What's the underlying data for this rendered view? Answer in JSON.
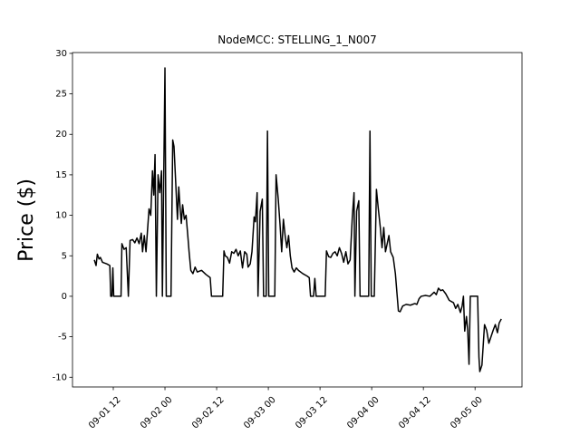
{
  "chart_data": {
    "type": "line",
    "title": "NodeMCC: STELLING_1_N007",
    "y_label": "Price ($)",
    "x": [
      7.6,
      8,
      8.3,
      8.7,
      9,
      9.5,
      10.5,
      11.2,
      11.4,
      11.7,
      11.9,
      12.1,
      13.8,
      14,
      14.5,
      15,
      15.5,
      15.9,
      16.5,
      17,
      17.5,
      18,
      18.5,
      18.8,
      19.2,
      19.6,
      20.3,
      20.7,
      21.1,
      21.4,
      21.7,
      22,
      22.4,
      22.8,
      23.2,
      23.4,
      24,
      24.3,
      25.4,
      25.8,
      26.1,
      26.5,
      26.9,
      27.2,
      27.5,
      27.8,
      28.1,
      28.5,
      28.9,
      29.3,
      29.6,
      30,
      30.5,
      31,
      31.5,
      32.5,
      33.5,
      34.5,
      34.8,
      37.4,
      37.7,
      38,
      38.5,
      39,
      39.5,
      40,
      40.5,
      41,
      41.5,
      42,
      42.5,
      43,
      43.3,
      43.8,
      44.2,
      44.7,
      45,
      45.4,
      45.6,
      46.1,
      46.6,
      46.9,
      47.5,
      47.8,
      48.1,
      49.5,
      49.8,
      50.3,
      50.7,
      51.1,
      51.5,
      51.9,
      52.3,
      52.7,
      53.1,
      53.5,
      54,
      54.5,
      55,
      56,
      57,
      57.5,
      57.8,
      58.5,
      58.8,
      59.1,
      61.2,
      61.5,
      62,
      62.5,
      63,
      63.5,
      64,
      64.5,
      65,
      65.5,
      66,
      66.5,
      67,
      67.5,
      67.9,
      68.1,
      68.5,
      69,
      69.3,
      70.8,
      71.3,
      71.6,
      71.9,
      72.6,
      73.1,
      73.5,
      74,
      74.4,
      74.8,
      75.2,
      75.6,
      76,
      76.4,
      77,
      77.5,
      78.2,
      78.6,
      79.2,
      80,
      81,
      82,
      82.5,
      83,
      83.5,
      84.5,
      85.5,
      86.5,
      87,
      87.5,
      88,
      88.5,
      89.2,
      90,
      91,
      91.5,
      92,
      92.6,
      93,
      93.3,
      93.6,
      94,
      94.3,
      94.6,
      94.9,
      96.6,
      96.9,
      97.1,
      97.6,
      98.2,
      98.7,
      99.2,
      99.7,
      100.2,
      100.7,
      101.2,
      101.6,
      102.1
    ],
    "values": [
      4.5,
      3.8,
      5.2,
      4.6,
      4.8,
      4.2,
      4.0,
      3.8,
      0,
      0,
      3.5,
      0,
      0,
      6.5,
      5.8,
      6.0,
      0,
      6.9,
      7.0,
      6.6,
      7.2,
      6.5,
      7.8,
      5.5,
      7.5,
      5.5,
      10.8,
      10.0,
      15.5,
      12.5,
      17.5,
      0,
      15,
      12.8,
      15.5,
      0,
      28.2,
      0,
      0,
      19.3,
      18.5,
      14,
      9.5,
      13.5,
      11,
      9,
      11.3,
      9.5,
      10,
      7.5,
      5.5,
      3.2,
      2.8,
      3.6,
      3.0,
      3.2,
      2.7,
      2.3,
      0,
      0,
      5.6,
      5.0,
      4.8,
      4.1,
      5.5,
      5.3,
      5.8,
      5.0,
      5.6,
      3.5,
      5.5,
      5.2,
      3.6,
      4.0,
      5.5,
      9.8,
      9.2,
      12.8,
      0,
      10.5,
      12,
      0,
      0,
      20.4,
      0,
      0,
      15,
      12,
      9,
      5.5,
      9.5,
      7.5,
      6,
      7.5,
      5.0,
      3.5,
      3.0,
      3.5,
      3.2,
      2.8,
      2.5,
      2.3,
      0,
      0,
      2.2,
      0,
      0,
      5.6,
      4.9,
      4.8,
      5.3,
      5.5,
      5.0,
      6.0,
      5.3,
      4.2,
      5.5,
      4.0,
      4.5,
      9.8,
      12.8,
      0,
      10.5,
      11.8,
      0,
      0,
      0,
      20.4,
      0,
      0,
      13.2,
      11,
      8.5,
      6.0,
      8.5,
      5.5,
      6.5,
      7.5,
      5.5,
      4.8,
      2.8,
      -1.8,
      -1.9,
      -1.2,
      -1.0,
      -1.1,
      -0.9,
      -1.0,
      -0.3,
      0.0,
      0.1,
      0.0,
      0.5,
      0.2,
      1.0,
      0.7,
      0.8,
      0.3,
      -0.5,
      -0.8,
      -1.5,
      -1.0,
      -2.0,
      -1.2,
      0,
      -4.3,
      -2.5,
      -4.2,
      -8.4,
      0,
      0,
      -7.5,
      -9.3,
      -8.5,
      -3.5,
      -4.2,
      -5.8,
      -5.0,
      -4.2,
      -3.5,
      -4.5,
      -3.3,
      -2.8
    ],
    "color": "#000000",
    "xlim": [
      2.53,
      106.9
    ],
    "xticks": [
      {
        "value": 12,
        "label": "09-01 12"
      },
      {
        "value": 24,
        "label": "09-02 00"
      },
      {
        "value": 36,
        "label": "09-02 12"
      },
      {
        "value": 48,
        "label": "09-03 00"
      },
      {
        "value": 60,
        "label": "09-03 12"
      },
      {
        "value": 72,
        "label": "09-04 00"
      },
      {
        "value": 84,
        "label": "09-04 12"
      },
      {
        "value": 96,
        "label": "09-05 00"
      }
    ],
    "ylim": [
      -11.2,
      30.1
    ],
    "yticks": [
      -10,
      -5,
      0,
      5,
      10,
      15,
      20,
      25,
      30
    ]
  }
}
